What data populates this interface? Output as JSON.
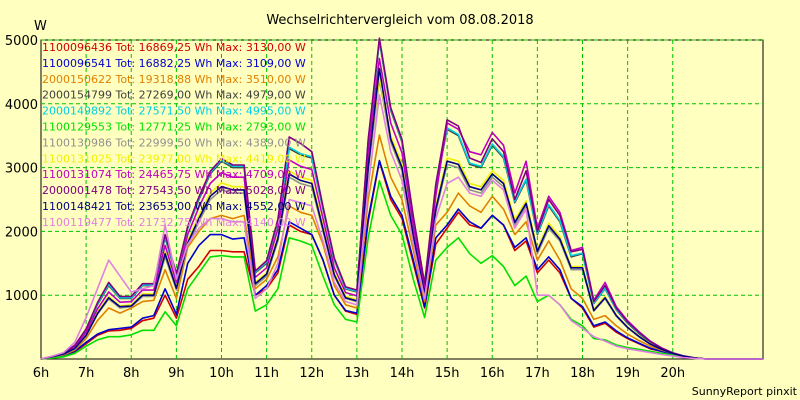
{
  "chart_data": {
    "type": "line",
    "title": "Wechselrichtervergleich vom 08.08.2018",
    "ylabel": "W",
    "footer": "SunnyReport pinxit",
    "ylim": [
      0,
      5000
    ],
    "xlim": [
      6,
      22
    ],
    "y_ticks": [
      1000,
      2000,
      3000,
      4000,
      5000
    ],
    "x_ticks": [
      {
        "v": 6,
        "label": "6h"
      },
      {
        "v": 7,
        "label": "7h"
      },
      {
        "v": 8,
        "label": "8h"
      },
      {
        "v": 9,
        "label": "9h"
      },
      {
        "v": 10,
        "label": "10h"
      },
      {
        "v": 11,
        "label": "11h"
      },
      {
        "v": 12,
        "label": "12h"
      },
      {
        "v": 13,
        "label": "13h"
      },
      {
        "v": 14,
        "label": "14h"
      },
      {
        "v": 15,
        "label": "15h"
      },
      {
        "v": 16,
        "label": "16h"
      },
      {
        "v": 17,
        "label": "17h"
      },
      {
        "v": 18,
        "label": "18h"
      },
      {
        "v": 19,
        "label": "19h"
      },
      {
        "v": 20,
        "label": "20h"
      }
    ],
    "grid": true,
    "x": [
      6.0,
      6.25,
      6.5,
      6.75,
      7.0,
      7.25,
      7.5,
      7.75,
      8.0,
      8.25,
      8.5,
      8.75,
      9.0,
      9.25,
      9.5,
      9.75,
      10.0,
      10.25,
      10.5,
      10.75,
      11.0,
      11.25,
      11.5,
      11.75,
      12.0,
      12.25,
      12.5,
      12.75,
      13.0,
      13.25,
      13.5,
      13.75,
      14.0,
      14.25,
      14.5,
      14.75,
      15.0,
      15.25,
      15.5,
      15.75,
      16.0,
      16.25,
      16.5,
      16.75,
      17.0,
      17.25,
      17.5,
      17.75,
      18.0,
      18.25,
      18.5,
      18.75,
      19.0,
      19.25,
      19.5,
      19.75,
      20.0,
      20.25,
      20.5,
      20.75,
      21.0,
      21.25,
      21.5,
      21.75,
      22.0
    ],
    "series": [
      {
        "name": "1100096436 Tot: 16869,25 Wh Max: 3130,00 W",
        "color": "#D00000",
        "values": [
          0,
          25,
          55,
          110,
          240,
          370,
          440,
          450,
          480,
          600,
          640,
          1000,
          640,
          1250,
          1450,
          1700,
          1700,
          1680,
          1680,
          1000,
          1100,
          1350,
          2100,
          2000,
          1950,
          1550,
          1000,
          750,
          700,
          2150,
          3100,
          2500,
          2200,
          1500,
          800,
          1800,
          2050,
          2300,
          2100,
          2050,
          2250,
          2100,
          1700,
          1850,
          1350,
          1550,
          1350,
          950,
          800,
          500,
          560,
          420,
          320,
          240,
          160,
          120,
          80,
          40,
          15,
          0,
          0,
          0,
          0,
          0,
          0
        ]
      },
      {
        "name": "1100096541 Tot: 16882,25 Wh Max: 3109,00 W",
        "color": "#0000D0",
        "values": [
          0,
          25,
          55,
          120,
          260,
          390,
          460,
          480,
          500,
          640,
          680,
          1100,
          700,
          1500,
          1780,
          1950,
          1950,
          1880,
          1900,
          1000,
          1150,
          1400,
          2150,
          2050,
          1950,
          1550,
          1000,
          760,
          720,
          2200,
          3109,
          2550,
          2250,
          1550,
          820,
          1900,
          2100,
          2350,
          2150,
          2050,
          2250,
          2100,
          1750,
          1900,
          1400,
          1600,
          1400,
          950,
          820,
          520,
          580,
          440,
          330,
          250,
          170,
          120,
          80,
          40,
          15,
          0,
          0,
          0,
          0,
          0,
          0
        ]
      },
      {
        "name": "2000150622 Tot: 19318,88 Wh Max: 3510,00 W",
        "color": "#E08000",
        "values": [
          0,
          30,
          65,
          140,
          320,
          600,
          800,
          720,
          800,
          900,
          920,
          1400,
          950,
          1750,
          2000,
          2200,
          2250,
          2200,
          2250,
          1100,
          1250,
          1600,
          2400,
          2300,
          2250,
          1800,
          1150,
          850,
          800,
          2500,
          3510,
          2850,
          2500,
          1700,
          900,
          2100,
          2300,
          2600,
          2400,
          2300,
          2550,
          2350,
          1950,
          2150,
          1550,
          1850,
          1550,
          1100,
          950,
          620,
          680,
          520,
          390,
          290,
          200,
          140,
          90,
          45,
          15,
          0,
          0,
          0,
          0,
          0,
          0
        ]
      },
      {
        "name": "2000154799 Tot: 27269,00 Wh Max: 4979,00 W",
        "color": "#404040",
        "values": [
          0,
          40,
          90,
          200,
          450,
          850,
          1150,
          950,
          950,
          1150,
          1150,
          1900,
          1300,
          2050,
          2500,
          2900,
          3100,
          3000,
          3000,
          1350,
          1500,
          2150,
          3300,
          3200,
          3150,
          2350,
          1550,
          1100,
          1050,
          3400,
          4979,
          3900,
          3400,
          2200,
          1150,
          2700,
          3600,
          3500,
          3050,
          3000,
          3350,
          3150,
          2450,
          2800,
          1950,
          2400,
          2150,
          1600,
          1650,
          870,
          1100,
          770,
          560,
          400,
          260,
          160,
          90,
          40,
          15,
          0,
          0,
          0,
          0,
          0,
          0
        ]
      },
      {
        "name": "2000149892 Tot: 27571,50 Wh Max: 4995,00 W",
        "color": "#00D0E0",
        "values": [
          0,
          40,
          90,
          210,
          460,
          860,
          1170,
          960,
          960,
          1160,
          1160,
          1920,
          1320,
          2060,
          2520,
          2920,
          3120,
          3020,
          3020,
          1360,
          1520,
          2170,
          3320,
          3220,
          3170,
          2370,
          1560,
          1110,
          1060,
          3420,
          4995,
          3920,
          3420,
          2220,
          1160,
          2720,
          3620,
          3520,
          3070,
          3020,
          3370,
          3170,
          2470,
          2820,
          1970,
          2420,
          2170,
          1620,
          1660,
          880,
          1110,
          780,
          570,
          410,
          270,
          170,
          95,
          45,
          15,
          0,
          0,
          0,
          0,
          0,
          0
        ]
      },
      {
        "name": "1100129553 Tot: 12771,25 Wh Max: 2793,00 W",
        "color": "#00E000",
        "values": [
          0,
          15,
          35,
          90,
          200,
          300,
          350,
          350,
          380,
          450,
          450,
          740,
          520,
          1100,
          1350,
          1600,
          1620,
          1600,
          1600,
          750,
          850,
          1100,
          1900,
          1850,
          1780,
          1300,
          850,
          620,
          580,
          1900,
          2793,
          2250,
          1950,
          1250,
          650,
          1550,
          1750,
          1900,
          1650,
          1500,
          1620,
          1450,
          1150,
          1300,
          900,
          1000,
          850,
          620,
          520,
          320,
          300,
          220,
          180,
          150,
          120,
          90,
          60,
          30,
          10,
          0,
          0,
          0,
          0,
          0,
          0
        ]
      },
      {
        "name": "1100130986 Tot: 22999,50 Wh Max: 4389,00 W",
        "color": "#909090",
        "values": [
          0,
          35,
          75,
          160,
          360,
          700,
          940,
          800,
          820,
          980,
          980,
          1600,
          1080,
          1780,
          2150,
          2500,
          2650,
          2600,
          2600,
          1150,
          1300,
          1850,
          2850,
          2750,
          2700,
          2000,
          1300,
          950,
          900,
          2950,
          4389,
          3400,
          2950,
          1900,
          1000,
          2300,
          3050,
          3000,
          2650,
          2600,
          2850,
          2700,
          2100,
          2400,
          1650,
          2050,
          1850,
          1400,
          1400,
          750,
          950,
          670,
          490,
          350,
          230,
          150,
          85,
          40,
          15,
          0,
          0,
          0,
          0,
          0,
          0
        ]
      },
      {
        "name": "1100131025 Tot: 23977,00 Wh Max: 4419,00 W",
        "color": "#F0F000",
        "values": [
          0,
          35,
          80,
          170,
          380,
          730,
          980,
          830,
          850,
          1020,
          1020,
          1680,
          1130,
          1850,
          2250,
          2600,
          2760,
          2700,
          2700,
          1200,
          1350,
          1920,
          2950,
          2850,
          2800,
          2080,
          1350,
          980,
          930,
          3050,
          4419,
          3500,
          3050,
          1970,
          1030,
          2400,
          3150,
          3100,
          2750,
          2700,
          2950,
          2800,
          2180,
          2480,
          1720,
          2130,
          1920,
          1450,
          1450,
          780,
          980,
          690,
          500,
          360,
          240,
          155,
          88,
          40,
          15,
          0,
          0,
          0,
          0,
          0,
          0
        ]
      },
      {
        "name": "1100131074 Tot: 24465,75 Wh Max: 4709,00 W",
        "color": "#C000C0",
        "values": [
          0,
          38,
          85,
          185,
          420,
          780,
          1050,
          890,
          900,
          1080,
          1080,
          1780,
          1200,
          1950,
          2380,
          2750,
          2920,
          2850,
          2850,
          1280,
          1430,
          2040,
          3120,
          3020,
          2970,
          2200,
          1430,
          1040,
          990,
          3230,
          4709,
          3700,
          3230,
          2080,
          1090,
          2560,
          3700,
          3600,
          3250,
          3200,
          3550,
          3350,
          2600,
          3100,
          2050,
          2550,
          2300,
          1700,
          1750,
          920,
          1200,
          820,
          600,
          430,
          280,
          175,
          95,
          45,
          15,
          0,
          0,
          0,
          0,
          0,
          0
        ]
      },
      {
        "name": "2000001478 Tot: 27543,50 Wh Max: 5028,00 W",
        "color": "#800080",
        "values": [
          0,
          42,
          95,
          215,
          470,
          880,
          1200,
          980,
          980,
          1180,
          1180,
          1950,
          1340,
          2080,
          2540,
          2940,
          3140,
          3040,
          3040,
          1380,
          1540,
          2190,
          3480,
          3380,
          3250,
          2390,
          1580,
          1130,
          1080,
          3440,
          5028,
          3940,
          3440,
          2240,
          1180,
          2740,
          3750,
          3650,
          3150,
          3080,
          3450,
          3250,
          2500,
          2950,
          2000,
          2500,
          2250,
          1680,
          1720,
          900,
          1150,
          800,
          580,
          420,
          275,
          170,
          95,
          45,
          15,
          0,
          0,
          0,
          0,
          0,
          0
        ]
      },
      {
        "name": "1100148421 Tot: 23653,00 Wh Max: 4552,00 W",
        "color": "#000080",
        "values": [
          0,
          36,
          78,
          165,
          370,
          710,
          960,
          820,
          830,
          1000,
          1000,
          1650,
          1110,
          1820,
          2200,
          2550,
          2700,
          2650,
          2650,
          1180,
          1330,
          1890,
          2900,
          2800,
          2750,
          2040,
          1320,
          960,
          910,
          3000,
          4552,
          3450,
          3000,
          1930,
          1010,
          2350,
          3100,
          3050,
          2700,
          2650,
          2900,
          2750,
          2140,
          2440,
          1690,
          2090,
          1880,
          1430,
          1430,
          760,
          960,
          680,
          495,
          355,
          235,
          152,
          86,
          40,
          15,
          0,
          0,
          0,
          0,
          0,
          0
        ]
      },
      {
        "name": "1100119477 Tot: 21732,75 Wh Max: 4140,00 W",
        "color": "#E080E0",
        "values": [
          0,
          45,
          100,
          260,
          650,
          1100,
          1550,
          1300,
          1050,
          1100,
          1150,
          2100,
          1250,
          1800,
          2050,
          2200,
          2200,
          2150,
          2150,
          950,
          1100,
          1500,
          2500,
          2450,
          2400,
          1850,
          1200,
          900,
          850,
          2700,
          4140,
          3250,
          2800,
          1800,
          950,
          2200,
          2750,
          2850,
          2600,
          2550,
          2800,
          2650,
          2050,
          2350,
          1000,
          1000,
          850,
          600,
          480,
          350,
          280,
          200,
          160,
          130,
          100,
          70,
          45,
          20,
          8,
          0,
          0,
          0,
          0,
          0,
          0
        ]
      }
    ]
  }
}
